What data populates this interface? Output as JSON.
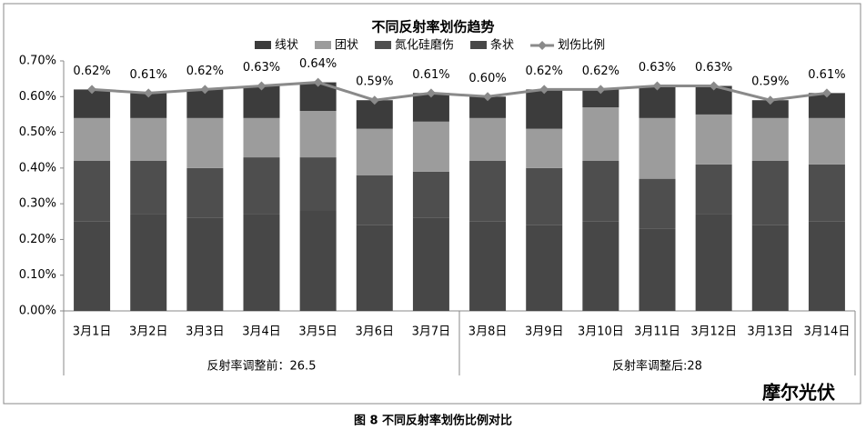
{
  "chart_data": {
    "type": "stacked_bar_line",
    "title": "不同反射率划伤趋势",
    "categories": [
      "3月1日",
      "3月2日",
      "3月3日",
      "3月4日",
      "3月5日",
      "3月6日",
      "3月7日",
      "3月8日",
      "3月9日",
      "3月10日",
      "3月11日",
      "3月12日",
      "3月13日",
      "3月14日"
    ],
    "groups": [
      "反射率调整前：26.5",
      "反射率调整后:28"
    ],
    "series": [
      {
        "name": "线状",
        "color": "#3c3c3c",
        "values": [
          0.08,
          0.07,
          0.08,
          0.09,
          0.08,
          0.08,
          0.08,
          0.06,
          0.11,
          0.05,
          0.09,
          0.08,
          0.05,
          0.07
        ]
      },
      {
        "name": "团状",
        "color": "#9c9c9c",
        "values": [
          0.12,
          0.12,
          0.14,
          0.11,
          0.13,
          0.13,
          0.14,
          0.12,
          0.11,
          0.15,
          0.17,
          0.14,
          0.12,
          0.13
        ]
      },
      {
        "name": "氮化硅磨伤",
        "color": "#4e4e4e",
        "values": [
          0.17,
          0.15,
          0.14,
          0.16,
          0.15,
          0.14,
          0.13,
          0.17,
          0.16,
          0.17,
          0.14,
          0.14,
          0.18,
          0.16
        ]
      },
      {
        "name": "条状",
        "color": "#474747",
        "values": [
          0.25,
          0.27,
          0.26,
          0.27,
          0.28,
          0.24,
          0.26,
          0.25,
          0.24,
          0.25,
          0.23,
          0.27,
          0.24,
          0.25
        ]
      }
    ],
    "line": {
      "name": "划伤比例",
      "color": "#8a8a8a",
      "values": [
        0.62,
        0.61,
        0.62,
        0.63,
        0.64,
        0.59,
        0.61,
        0.6,
        0.62,
        0.62,
        0.63,
        0.63,
        0.59,
        0.61
      ],
      "value_labels": [
        "0.62%",
        "0.61%",
        "0.62%",
        "0.63%",
        "0.64%",
        "0.59%",
        "0.61%",
        "0.60%",
        "0.62%",
        "0.62%",
        "0.63%",
        "0.63%",
        "0.59%",
        "0.61%"
      ]
    },
    "ylim": [
      0,
      0.7
    ],
    "yticks": [
      {
        "value": 0,
        "label": "0.00%"
      },
      {
        "value": 0.1,
        "label": "0.10%"
      },
      {
        "value": 0.2,
        "label": "0.20%"
      },
      {
        "value": 0.3,
        "label": "0.30%"
      },
      {
        "value": 0.4,
        "label": "0.40%"
      },
      {
        "value": 0.5,
        "label": "0.50%"
      },
      {
        "value": 0.6,
        "label": "0.60%"
      },
      {
        "value": 0.7,
        "label": "0.70%"
      }
    ],
    "grid": false,
    "caption": "图 8 不同反射率划伤比例对比",
    "watermark": "摩尔光伏"
  }
}
